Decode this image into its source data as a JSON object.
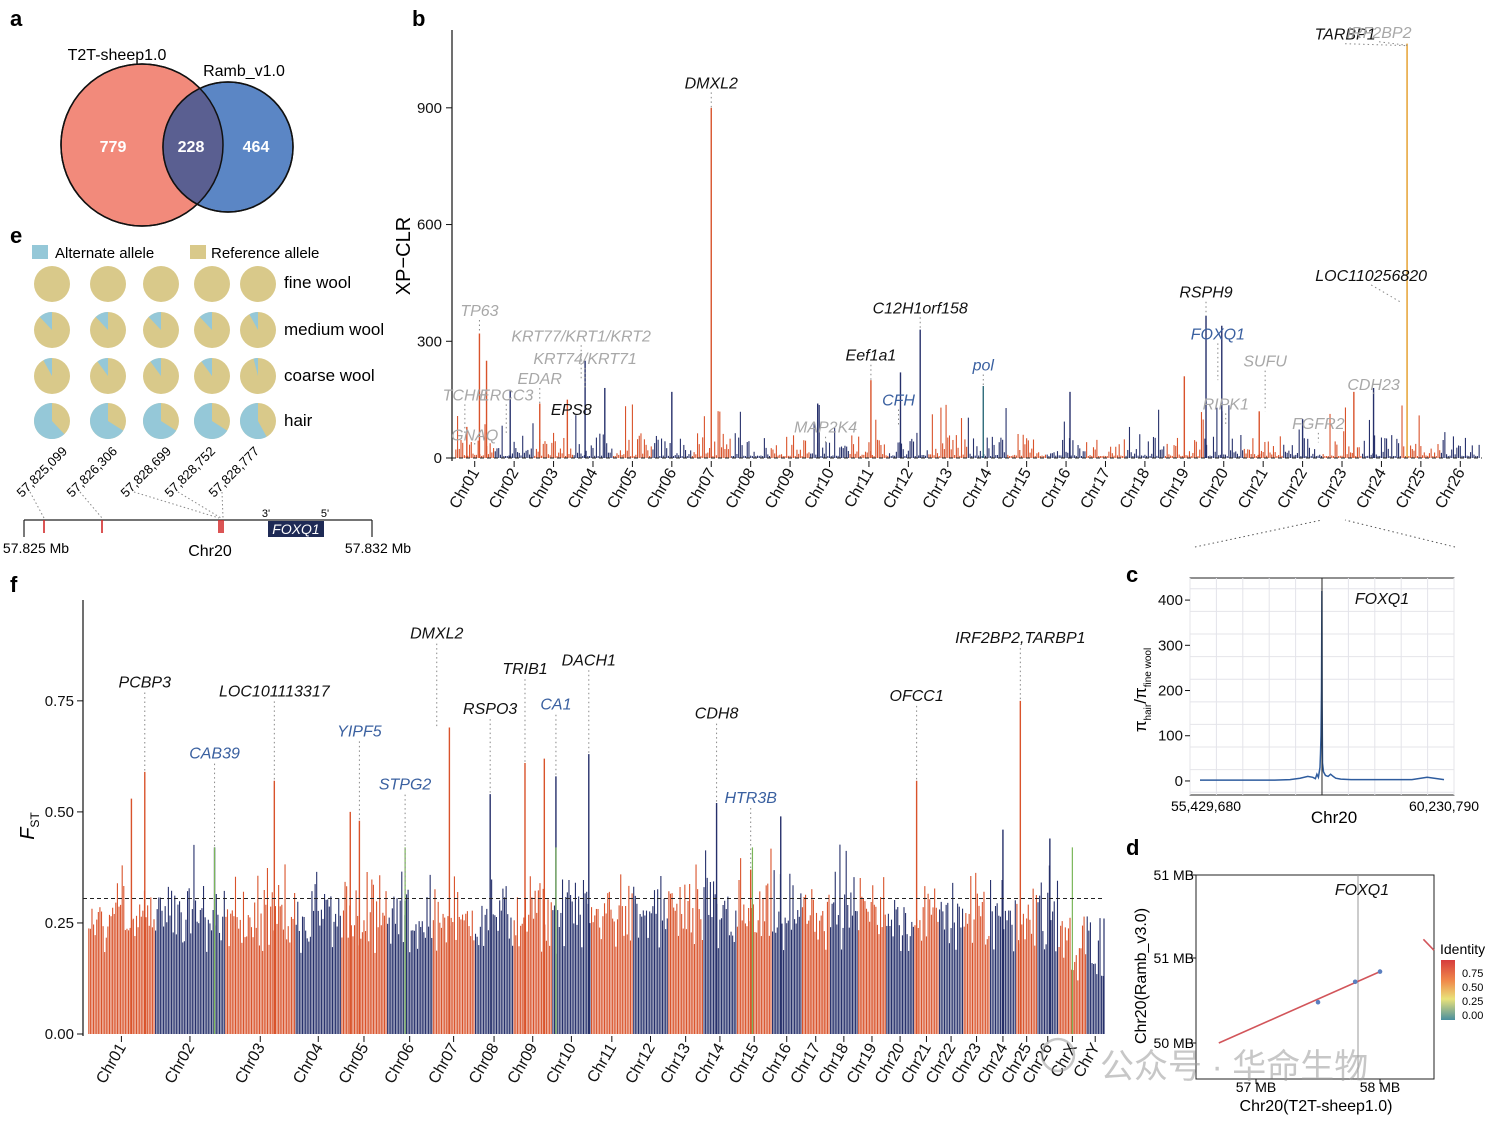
{
  "watermark": "公众号 · 华命生物",
  "panel_labels": {
    "a": "a",
    "b": "b",
    "c": "c",
    "d": "d",
    "e": "e",
    "f": "f"
  },
  "colors": {
    "venn_left": "#f28a7b",
    "venn_right": "#5b86c5",
    "venn_overlap": "#5a5f91",
    "orange": "#d9532b",
    "navy": "#26306b",
    "gold": "#e39b25",
    "green": "#7ab65a",
    "alt_allele": "#95c8d8",
    "ref_allele": "#d9c98a",
    "gene_black": "#111111",
    "gene_grey": "#a8a8a8",
    "gene_blue": "#3a60a0",
    "line_c": "#2e5c9e",
    "dotplot_line": "#d2555a",
    "dotplot_point": "#5a7fc0"
  },
  "venn": {
    "left_label": "T2T-sheep1.0",
    "right_label": "Ramb_v1.0",
    "left_only": "779",
    "overlap": "228",
    "right_only": "464"
  },
  "pies": {
    "legend": [
      "Alternate allele",
      "Reference allele"
    ],
    "rows": [
      {
        "label": "fine wool",
        "alt": [
          0,
          0,
          0,
          0,
          0
        ]
      },
      {
        "label": "medium wool",
        "alt": [
          0.12,
          0.12,
          0.12,
          0.12,
          0.08
        ]
      },
      {
        "label": "coarse wool",
        "alt": [
          0.08,
          0.1,
          0.1,
          0.1,
          0.04
        ]
      },
      {
        "label": "hair",
        "alt": [
          0.62,
          0.66,
          0.66,
          0.66,
          0.58
        ]
      }
    ]
  },
  "locus": {
    "snps": [
      "57,825,099",
      "57,826,306",
      "57,828,699",
      "57,828,752",
      "57,828,777"
    ],
    "start": "57.825 Mb",
    "end": "57.832 Mb",
    "chrom": "Chr20",
    "gene": "FOXQ1",
    "three_prime": "3'",
    "five_prime": "5'"
  },
  "chart_data": [
    {
      "panel": "b",
      "type": "bar",
      "ylabel": "XP−CLR",
      "yticks": [
        0,
        300,
        600,
        900
      ],
      "ylim": [
        0,
        1100
      ],
      "threshold": 10,
      "categories": [
        "Chr01",
        "Chr02",
        "Chr03",
        "Chr04",
        "Chr05",
        "Chr06",
        "Chr07",
        "Chr08",
        "Chr09",
        "Chr10",
        "Chr11",
        "Chr12",
        "Chr13",
        "Chr14",
        "Chr15",
        "Chr16",
        "Chr17",
        "Chr18",
        "Chr19",
        "Chr20",
        "Chr21",
        "Chr22",
        "Chr23",
        "Chr24",
        "Chr25",
        "Chr26"
      ],
      "peaks": [
        {
          "chr": 1,
          "pos": 0.3,
          "value": 80
        },
        {
          "chr": 1,
          "pos": 0.62,
          "value": 320
        },
        {
          "chr": 1,
          "pos": 0.8,
          "value": 250
        },
        {
          "chr": 2,
          "pos": 0.4,
          "value": 175
        },
        {
          "chr": 3,
          "pos": 0.15,
          "value": 140
        },
        {
          "chr": 3,
          "pos": 0.85,
          "value": 150
        },
        {
          "chr": 4,
          "pos": 0.3,
          "value": 250
        },
        {
          "chr": 4,
          "pos": 0.8,
          "value": 180
        },
        {
          "chr": 6,
          "pos": 0.5,
          "value": 170
        },
        {
          "chr": 7,
          "pos": 0.5,
          "value": 900
        },
        {
          "chr": 10,
          "pos": 0.2,
          "value": 140
        },
        {
          "chr": 11,
          "pos": 0.55,
          "value": 200
        },
        {
          "chr": 12,
          "pos": 0.3,
          "value": 220
        },
        {
          "chr": 12,
          "pos": 0.8,
          "value": 330
        },
        {
          "chr": 14,
          "pos": 0.4,
          "value": 185
        },
        {
          "chr": 16,
          "pos": 0.6,
          "value": 170
        },
        {
          "chr": 19,
          "pos": 0.5,
          "value": 210
        },
        {
          "chr": 20,
          "pos": 0.05,
          "value": 365
        },
        {
          "chr": 20,
          "pos": 0.45,
          "value": 340
        },
        {
          "chr": 21,
          "pos": 0.4,
          "value": 120
        },
        {
          "chr": 22,
          "pos": 0.5,
          "value": 100
        },
        {
          "chr": 23,
          "pos": 0.8,
          "value": 170
        },
        {
          "chr": 24,
          "pos": 0.3,
          "value": 180
        },
        {
          "chr": 25,
          "pos": 0.15,
          "value": 1065
        }
      ],
      "genes": [
        {
          "name": "TCHH",
          "chr": 1,
          "pos": 0.25,
          "tone": "gene_grey",
          "value": 60,
          "label_value": 148
        },
        {
          "name": "TP63",
          "chr": 1,
          "pos": 0.62,
          "tone": "gene_grey",
          "value": 320,
          "label_value": 365
        },
        {
          "name": "GNAQ",
          "chr": 1,
          "pos": 0.5,
          "tone": "gene_grey",
          "value": 40,
          "label_value": 45
        },
        {
          "name": "ERCC3",
          "chr": 2,
          "pos": 0.3,
          "tone": "gene_grey",
          "value": 60,
          "label_value": 148
        },
        {
          "name": "EDAR",
          "chr": 3,
          "pos": 0.15,
          "tone": "gene_grey",
          "value": 140,
          "label_value": 190
        },
        {
          "name": "KRT77/KRT1/KRT2",
          "chr": 4,
          "pos": 0.2,
          "tone": "gene_grey",
          "value": 200,
          "label_value": 300
        },
        {
          "name": "KRT74/KRT71",
          "chr": 4,
          "pos": 0.3,
          "tone": "gene_grey",
          "value": 180,
          "label_value": 242
        },
        {
          "name": "EPS8",
          "chr": 3,
          "pos": 0.95,
          "tone": "gene_black",
          "value": 100,
          "label_value": 110
        },
        {
          "name": "DMXL2",
          "chr": 7,
          "pos": 0.5,
          "tone": "gene_black",
          "value": 900,
          "label_value": 950
        },
        {
          "name": "MAP2K4",
          "chr": 10,
          "pos": 0.4,
          "tone": "gene_grey",
          "value": 30,
          "label_value": 65
        },
        {
          "name": "Eef1a1",
          "chr": 11,
          "pos": 0.55,
          "tone": "gene_black",
          "value": 200,
          "label_value": 250
        },
        {
          "name": "CFH",
          "chr": 12,
          "pos": 0.25,
          "tone": "gene_blue",
          "value": 80,
          "label_value": 135
        },
        {
          "name": "C12H1orf158",
          "chr": 12,
          "pos": 0.8,
          "tone": "gene_black",
          "value": 330,
          "label_value": 372
        },
        {
          "name": "pol",
          "chr": 14,
          "pos": 0.4,
          "tone": "gene_blue",
          "value": 180,
          "label_value": 225
        },
        {
          "name": "RSPH9",
          "chr": 20,
          "pos": 0.05,
          "tone": "gene_black",
          "value": 365,
          "label_value": 412
        },
        {
          "name": "FOXQ1",
          "chr": 20,
          "pos": 0.35,
          "tone": "gene_blue",
          "value": 200,
          "label_value": 305
        },
        {
          "name": "RIPK1",
          "chr": 20,
          "pos": 0.55,
          "tone": "gene_grey",
          "value": 80,
          "label_value": 125
        },
        {
          "name": "SUFU",
          "chr": 21,
          "pos": 0.55,
          "tone": "gene_grey",
          "value": 120,
          "label_value": 235
        },
        {
          "name": "FGFR2",
          "chr": 22,
          "pos": 0.9,
          "tone": "gene_grey",
          "value": 40,
          "label_value": 75
        },
        {
          "name": "CDH23",
          "chr": 24,
          "pos": 0.3,
          "tone": "gene_grey",
          "value": 170,
          "label_value": 175
        },
        {
          "name": "LOC110256820",
          "chr": 25,
          "pos": 0.0,
          "tone": "gene_black",
          "value": 400,
          "label_value": 455
        },
        {
          "name": "TARBP1",
          "chr": 25,
          "pos": 0.1,
          "tone": "gene_black",
          "value": 1060,
          "label_value": 1075
        },
        {
          "name": "IRF2BP2",
          "chr": 25,
          "pos": 0.2,
          "tone": "gene_grey",
          "value": 1060,
          "label_value": 1080
        }
      ]
    },
    {
      "panel": "c",
      "type": "line",
      "xlabel": "Chr20",
      "ylabel": "π_hair/π_fine wool",
      "ylabel_main": "π",
      "ylabel_sub1": "hair",
      "ylabel_mid": "/π",
      "ylabel_sub2": "fine wool",
      "xticks": [
        "55,429,680",
        "60,230,790"
      ],
      "xlim": [
        55429680,
        60230790
      ],
      "yticks": [
        0,
        100,
        200,
        300,
        400
      ],
      "ylim": [
        -20,
        440
      ],
      "vline": 57830000,
      "annotation": "FOXQ1",
      "series": [
        {
          "x": [
            55429680,
            55700000,
            56000000,
            56300000,
            56600000,
            56900000,
            57200000,
            57400000,
            57550000,
            57650000,
            57700000,
            57730000,
            57760000,
            57790000,
            57800000,
            57810000,
            57820000,
            57828000,
            57832000,
            57840000,
            57860000,
            57900000,
            57950000,
            58000000,
            58050000,
            58100000,
            58200000,
            58400000,
            58600000,
            58800000,
            59000000,
            59300000,
            59600000,
            59900000,
            60230790
          ],
          "y": [
            2,
            2,
            2,
            2,
            2,
            2,
            3,
            6,
            10,
            8,
            5,
            15,
            8,
            30,
            60,
            100,
            200,
            420,
            180,
            40,
            20,
            12,
            10,
            15,
            10,
            6,
            4,
            3,
            3,
            3,
            3,
            3,
            3,
            8,
            3
          ]
        }
      ]
    },
    {
      "panel": "d",
      "type": "scatter",
      "xlabel": "Chr20(T2T-sheep1.0)",
      "ylabel": "Chr20(Ramb_v3.0)",
      "xticks": [
        "57 MB",
        "58 MB"
      ],
      "yticks": [
        "50 MB",
        "51 MB",
        "51 MB"
      ],
      "annotation": "FOXQ1",
      "legend_title": "Identity",
      "legend_ticks": [
        "0.75",
        "0.50",
        "0.25",
        "0.00"
      ],
      "points": [
        [
          57.5,
          50.48
        ],
        [
          57.8,
          50.72
        ],
        [
          58.0,
          50.84
        ]
      ],
      "segments": [
        [
          [
            56.7,
            50.0
          ],
          [
            58.0,
            50.84
          ]
        ],
        [
          [
            58.35,
            51.22
          ],
          [
            58.6,
            51.09
          ]
        ]
      ]
    },
    {
      "panel": "f",
      "type": "bar",
      "ylabel": "F",
      "ylabel_sub": "ST",
      "yticks": [
        "0.00",
        "0.25",
        "0.50",
        "0.75"
      ],
      "ylim": [
        0,
        0.95
      ],
      "threshold": 0.305,
      "categories": [
        "Chr01",
        "Chr02",
        "Chr03",
        "Chr04",
        "Chr05",
        "Chr06",
        "Chr07",
        "Chr08",
        "Chr09",
        "Chr10",
        "Chr11",
        "Chr12",
        "Chr13",
        "Chr14",
        "Chr15",
        "Chr16",
        "Chr17",
        "Chr18",
        "Chr19",
        "Chr20",
        "Chr21",
        "Chr22",
        "Chr23",
        "Chr24",
        "Chr25",
        "Chr26",
        "ChrX",
        "ChrY"
      ],
      "peaks": [
        {
          "chr": 1,
          "pos": 0.85,
          "value": 0.59
        },
        {
          "chr": 1,
          "pos": 0.65,
          "value": 0.53
        },
        {
          "chr": 2,
          "pos": 0.85,
          "value": 0.42
        },
        {
          "chr": 3,
          "pos": 0.7,
          "value": 0.57
        },
        {
          "chr": 5,
          "pos": 0.4,
          "value": 0.48
        },
        {
          "chr": 5,
          "pos": 0.2,
          "value": 0.5
        },
        {
          "chr": 6,
          "pos": 0.4,
          "value": 0.3
        },
        {
          "chr": 7,
          "pos": 0.4,
          "value": 0.69
        },
        {
          "chr": 8,
          "pos": 0.4,
          "value": 0.54
        },
        {
          "chr": 9,
          "pos": 0.3,
          "value": 0.61
        },
        {
          "chr": 9,
          "pos": 0.8,
          "value": 0.62
        },
        {
          "chr": 10,
          "pos": 0.1,
          "value": 0.58
        },
        {
          "chr": 10,
          "pos": 0.95,
          "value": 0.63
        },
        {
          "chr": 14,
          "pos": 0.4,
          "value": 0.52
        },
        {
          "chr": 15,
          "pos": 0.4,
          "value": 0.37
        },
        {
          "chr": 16,
          "pos": 0.3,
          "value": 0.49
        },
        {
          "chr": 21,
          "pos": 0.1,
          "value": 0.57
        },
        {
          "chr": 24,
          "pos": 0.5,
          "value": 0.46
        },
        {
          "chr": 25,
          "pos": 0.2,
          "value": 0.75
        },
        {
          "chr": 26,
          "pos": 0.6,
          "value": 0.44
        }
      ],
      "genes": [
        {
          "name": "PCBP3",
          "chr": 1,
          "pos": 0.85,
          "tone": "gene_black",
          "value": 0.59,
          "label_value": 0.78
        },
        {
          "name": "CAB39",
          "chr": 2,
          "pos": 0.85,
          "tone": "gene_blue",
          "value": 0.42,
          "label_value": 0.62
        },
        {
          "name": "LOC101113317",
          "chr": 3,
          "pos": 0.7,
          "tone": "gene_black",
          "value": 0.57,
          "label_value": 0.76
        },
        {
          "name": "YIPF5",
          "chr": 5,
          "pos": 0.4,
          "tone": "gene_blue",
          "value": 0.48,
          "label_value": 0.67
        },
        {
          "name": "STPG2",
          "chr": 6,
          "pos": 0.4,
          "tone": "gene_blue",
          "value": 0.3,
          "label_value": 0.55
        },
        {
          "name": "DMXL2",
          "chr": 7,
          "pos": 0.1,
          "tone": "gene_black",
          "value": 0.69,
          "label_value": 0.89
        },
        {
          "name": "RSPO3",
          "chr": 8,
          "pos": 0.4,
          "tone": "gene_black",
          "value": 0.54,
          "label_value": 0.72
        },
        {
          "name": "TRIB1",
          "chr": 9,
          "pos": 0.3,
          "tone": "gene_black",
          "value": 0.61,
          "label_value": 0.81
        },
        {
          "name": "CA1",
          "chr": 10,
          "pos": 0.1,
          "tone": "gene_blue",
          "value": 0.58,
          "label_value": 0.73
        },
        {
          "name": "DACH1",
          "chr": 10,
          "pos": 0.95,
          "tone": "gene_black",
          "value": 0.63,
          "label_value": 0.83
        },
        {
          "name": "CDH8",
          "chr": 14,
          "pos": 0.4,
          "tone": "gene_black",
          "value": 0.52,
          "label_value": 0.71
        },
        {
          "name": "HTR3B",
          "chr": 15,
          "pos": 0.4,
          "tone": "gene_blue",
          "value": 0.37,
          "label_value": 0.52
        },
        {
          "name": "OFCC1",
          "chr": 21,
          "pos": 0.1,
          "tone": "gene_black",
          "value": 0.57,
          "label_value": 0.75
        },
        {
          "name": "IRF2BP2,TARBP1",
          "chr": 25,
          "pos": 0.2,
          "tone": "gene_black",
          "value": 0.75,
          "label_value": 0.88
        }
      ]
    }
  ]
}
